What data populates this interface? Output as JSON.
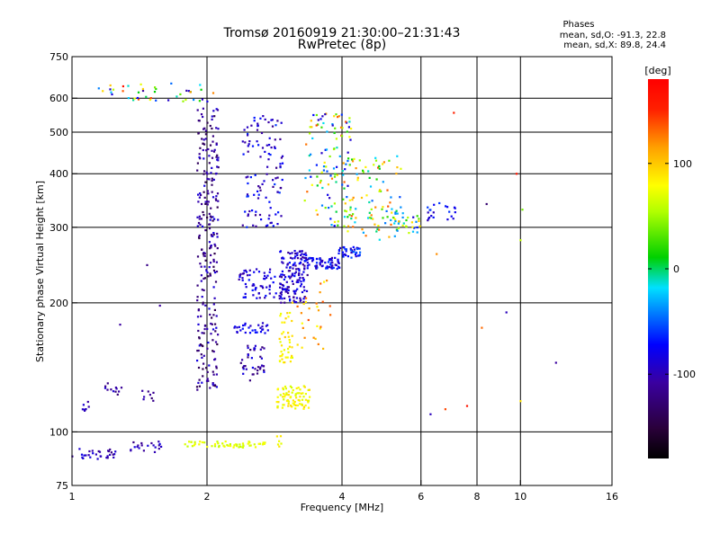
{
  "chart_data": {
    "type": "scatter",
    "title": "Tromsø 20160919 21:30:00–21:31:43",
    "subtitle": "RwPretec (8p)",
    "xlabel": "Frequency [MHz]",
    "ylabel": "Stationary phase Virtual Height [km]",
    "x_scale": "log",
    "y_scale": "log",
    "xlim": [
      1,
      16
    ],
    "ylim": [
      75,
      750
    ],
    "x_ticks": [
      1,
      2,
      4,
      6,
      8,
      10,
      16
    ],
    "y_ticks": [
      75,
      100,
      200,
      300,
      400,
      500,
      600,
      750
    ],
    "grid_x": [
      2,
      4,
      6,
      8,
      10
    ],
    "grid_y": [
      100,
      200,
      300,
      400,
      500,
      600
    ],
    "grid": true,
    "phases_title": "Phases",
    "phases_line1": "mean, sd,O: -91.3, 22.8",
    "phases_line2": "mean, sd,X: 89.8, 24.4",
    "colorbar": {
      "label": "[deg]",
      "range": [
        -180,
        180
      ],
      "ticks": [
        -100,
        0,
        100
      ],
      "tick_labels": [
        "-100",
        "0",
        "100"
      ],
      "colormap": "rainbow (black-purple-blue-cyan-green-yellow-orange-red)"
    },
    "series": [
      {
        "clusters": [
          {
            "f": [
              1.0,
              1.25
            ],
            "h": [
              86,
              92
            ],
            "phase": [
              -120,
              -80
            ],
            "n": 30
          },
          {
            "f": [
              1.35,
              1.62
            ],
            "h": [
              89,
              95
            ],
            "phase": [
              -125,
              -85
            ],
            "n": 20
          },
          {
            "f": [
              1.05,
              1.1
            ],
            "h": [
              112,
              120
            ],
            "phase": [
              -120,
              -90
            ],
            "n": 8
          },
          {
            "f": [
              1.15,
              1.3
            ],
            "h": [
              122,
              130
            ],
            "phase": [
              -130,
              -90
            ],
            "n": 12
          },
          {
            "f": [
              1.4,
              1.52
            ],
            "h": [
              118,
              125
            ],
            "phase": [
              -130,
              -100
            ],
            "n": 8
          },
          {
            "f": [
              1.9,
              2.12
            ],
            "h": [
              125,
              600
            ],
            "phase": [
              -145,
              -85
            ],
            "n": 260
          },
          {
            "f": [
              2.38,
              2.7
            ],
            "h": [
              130,
              160
            ],
            "phase": [
              -130,
              -80
            ],
            "n": 40
          },
          {
            "f": [
              2.3,
              2.75
            ],
            "h": [
              170,
              180
            ],
            "phase": [
              -100,
              -70
            ],
            "n": 30
          },
          {
            "f": [
              2.35,
              2.85
            ],
            "h": [
              205,
              240
            ],
            "phase": [
              -110,
              -70
            ],
            "n": 60
          },
          {
            "f": [
              2.4,
              2.95
            ],
            "h": [
              300,
              550
            ],
            "phase": [
              -120,
              -60
            ],
            "n": 110
          },
          {
            "f": [
              2.9,
              3.35
            ],
            "h": [
              200,
              265
            ],
            "phase": [
              -120,
              -70
            ],
            "n": 150
          },
          {
            "f": [
              3.3,
              3.95
            ],
            "h": [
              240,
              255
            ],
            "phase": [
              -110,
              -60
            ],
            "n": 70
          },
          {
            "f": [
              3.9,
              4.4
            ],
            "h": [
              255,
              270
            ],
            "phase": [
              -100,
              -50
            ],
            "n": 40
          },
          {
            "f": [
              3.3,
              4.2
            ],
            "h": [
              300,
              560
            ],
            "phase": [
              -100,
              140
            ],
            "n": 110
          },
          {
            "f": [
              1.1,
              2.1
            ],
            "h": [
              590,
              650
            ],
            "phase": [
              -110,
              140
            ],
            "n": 40
          },
          {
            "f": [
              4.0,
              5.5
            ],
            "h": [
              280,
              440
            ],
            "phase": [
              -60,
              140
            ],
            "n": 100
          },
          {
            "f": [
              5.2,
              6.0
            ],
            "h": [
              290,
              330
            ],
            "phase": [
              -100,
              100
            ],
            "n": 30
          },
          {
            "f": [
              6.1,
              7.2
            ],
            "h": [
              310,
              345
            ],
            "phase": [
              -110,
              -60
            ],
            "n": 20
          }
        ],
        "singles": [
          {
            "f": 1.47,
            "h": 245,
            "phase": -120
          },
          {
            "f": 1.57,
            "h": 197,
            "phase": -110
          },
          {
            "f": 1.28,
            "h": 178,
            "phase": -110
          },
          {
            "f": 2.08,
            "h": 205,
            "phase": -100
          },
          {
            "f": 6.3,
            "h": 110,
            "phase": -100
          },
          {
            "f": 8.4,
            "h": 340,
            "phase": -130
          },
          {
            "f": 9.3,
            "h": 190,
            "phase": -100
          },
          {
            "f": 12.0,
            "h": 145,
            "phase": -110
          },
          {
            "f": 6.4,
            "h": 325,
            "phase": -100
          }
        ]
      },
      {
        "clusters": [
          {
            "f": [
              1.75,
              2.7
            ],
            "h": [
              92,
              95
            ],
            "phase": [
              60,
              80
            ],
            "n": 55
          },
          {
            "f": [
              2.85,
              3.4
            ],
            "h": [
              113,
              128
            ],
            "phase": [
              65,
              95
            ],
            "n": 80
          },
          {
            "f": [
              2.9,
              3.1
            ],
            "h": [
              145,
              190
            ],
            "phase": [
              70,
              100
            ],
            "n": 40
          },
          {
            "f": [
              3.1,
              3.8
            ],
            "h": [
              155,
              230
            ],
            "phase": [
              80,
              140
            ],
            "n": 30
          },
          {
            "f": [
              2.85,
              2.95
            ],
            "h": [
              92,
              99
            ],
            "phase": [
              70,
              90
            ],
            "n": 6
          }
        ],
        "singles": [
          {
            "f": 6.5,
            "h": 260,
            "phase": 120
          },
          {
            "f": 6.8,
            "h": 113,
            "phase": 140
          },
          {
            "f": 7.6,
            "h": 115,
            "phase": 160
          },
          {
            "f": 8.2,
            "h": 175,
            "phase": 130
          },
          {
            "f": 10.1,
            "h": 330,
            "phase": 40
          },
          {
            "f": 10.0,
            "h": 280,
            "phase": 60
          },
          {
            "f": 10.0,
            "h": 118,
            "phase": 90
          },
          {
            "f": 9.8,
            "h": 400,
            "phase": 160
          },
          {
            "f": 7.1,
            "h": 555,
            "phase": 150
          },
          {
            "f": 1.3,
            "h": 640,
            "phase": 160
          }
        ]
      }
    ]
  }
}
